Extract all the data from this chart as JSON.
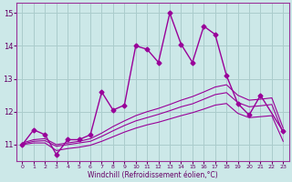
{
  "background_color": "#cce8e8",
  "grid_color": "#aacccc",
  "line_color": "#990099",
  "x_labels": [
    "0",
    "1",
    "2",
    "3",
    "4",
    "5",
    "6",
    "7",
    "8",
    "9",
    "10",
    "11",
    "12",
    "13",
    "14",
    "15",
    "16",
    "17",
    "18",
    "19",
    "20",
    "21",
    "22",
    "23"
  ],
  "xlabel": "Windchill (Refroidissement éolien,°C)",
  "ylim": [
    10.5,
    15.3
  ],
  "xlim": [
    -0.5,
    23.5
  ],
  "yticks": [
    11,
    12,
    13,
    14,
    15
  ],
  "main_series": {
    "x": [
      0,
      1,
      2,
      3,
      4,
      5,
      6,
      7,
      8,
      9,
      10,
      11,
      12,
      13,
      14,
      15,
      16,
      17,
      18,
      19,
      20,
      21,
      23
    ],
    "y": [
      11.0,
      11.45,
      11.3,
      10.7,
      11.15,
      11.15,
      11.3,
      12.6,
      12.05,
      12.2,
      14.0,
      13.9,
      13.5,
      15.0,
      14.05,
      13.5,
      14.6,
      14.35,
      13.1,
      12.25,
      11.9,
      12.5,
      11.4
    ]
  },
  "smooth1": {
    "x": [
      0,
      1,
      2,
      3,
      4,
      5,
      6,
      7,
      8,
      9,
      10,
      11,
      12,
      13,
      14,
      15,
      16,
      17,
      18,
      19,
      20,
      21,
      22,
      23
    ],
    "y": [
      11.05,
      11.15,
      11.18,
      11.0,
      11.05,
      11.1,
      11.18,
      11.35,
      11.55,
      11.72,
      11.88,
      12.0,
      12.1,
      12.22,
      12.35,
      12.46,
      12.6,
      12.75,
      12.82,
      12.5,
      12.35,
      12.38,
      12.42,
      11.5
    ]
  },
  "smooth2": {
    "x": [
      0,
      1,
      2,
      3,
      4,
      5,
      6,
      7,
      8,
      9,
      10,
      11,
      12,
      13,
      14,
      15,
      16,
      17,
      18,
      19,
      20,
      21,
      22,
      23
    ],
    "y": [
      11.02,
      11.1,
      11.12,
      10.95,
      11.0,
      11.05,
      11.1,
      11.25,
      11.42,
      11.58,
      11.72,
      11.82,
      11.92,
      12.03,
      12.15,
      12.24,
      12.38,
      12.52,
      12.58,
      12.28,
      12.15,
      12.18,
      12.22,
      11.35
    ]
  },
  "smooth3": {
    "x": [
      0,
      1,
      2,
      3,
      4,
      5,
      6,
      7,
      8,
      9,
      10,
      11,
      12,
      13,
      14,
      15,
      16,
      17,
      18,
      19,
      20,
      21,
      22,
      23
    ],
    "y": [
      11.0,
      11.05,
      11.05,
      10.82,
      10.88,
      10.92,
      10.98,
      11.1,
      11.24,
      11.38,
      11.5,
      11.6,
      11.68,
      11.78,
      11.88,
      11.97,
      12.08,
      12.2,
      12.25,
      11.95,
      11.82,
      11.85,
      11.88,
      11.1
    ]
  }
}
